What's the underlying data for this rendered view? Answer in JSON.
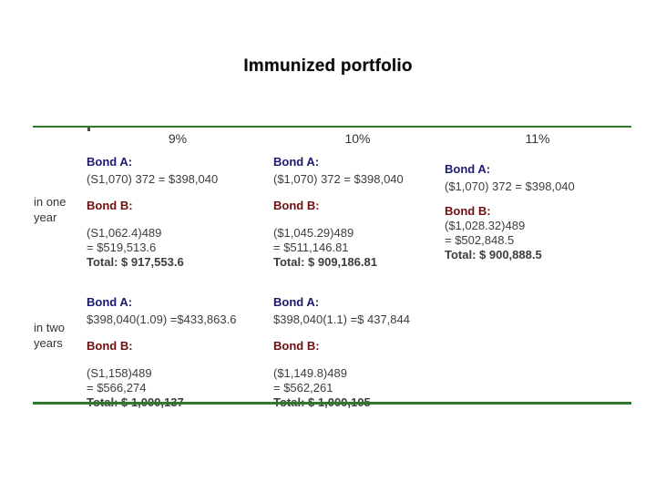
{
  "title": "Immunized portfolio",
  "table": {
    "columns": [
      {
        "header": "9%"
      },
      {
        "header": "10%"
      },
      {
        "header": "11%"
      }
    ],
    "rows": [
      {
        "label": "in one year"
      },
      {
        "label": "in two years"
      }
    ],
    "cells": {
      "r1c1": {
        "bond_a_label": "Bond A:",
        "bond_a_calc": "(S1,070) 372 = $398,040",
        "bond_b_label": "Bond B:",
        "bond_b_line1": "(S1,062.4)489",
        "bond_b_line2": "= $519,513.6",
        "total": "Total: $ 917,553.6"
      },
      "r1c2": {
        "bond_a_label": "Bond A:",
        "bond_a_calc": "($1,070) 372 = $398,040",
        "bond_b_label": "Bond B:",
        "bond_b_line1": "($1,045.29)489",
        "bond_b_line2": "= $511,146.81",
        "total": "Total: $ 909,186.81"
      },
      "r1c3": {
        "bond_a_label": "Bond A:",
        "bond_a_calc": "($1,070) 372 = $398,040",
        "bond_b_label": "Bond B:",
        "bond_b_line1": "($1,028.32)489",
        "bond_b_line2": "= $502,848.5",
        "total": "Total: $ 900,888.5"
      },
      "r2c1": {
        "bond_a_label": "Bond A:",
        "bond_a_calc": "$398,040(1.09) =$433,863.6",
        "bond_b_label": "Bond B:",
        "bond_b_line1": "(S1,158)489",
        "bond_b_line2": "= $566,274",
        "total": "Total: $ 1,000,137"
      },
      "r2c2": {
        "bond_a_label": "Bond A:",
        "bond_a_calc": "$398,040(1.1) =$ 437,844",
        "bond_b_label": "Bond B:",
        "bond_b_line1": "($1,149.8)489",
        "bond_b_line2": "= $562,261",
        "total": "Total: $ 1,000,105"
      }
    }
  },
  "colors": {
    "accent_green": "#2d7a2d",
    "bond_a_navy": "#1a1a73",
    "bond_b_maroon": "#6e0e0e",
    "body_text": "#3d3d3d",
    "title_text": "#0a0a0a"
  }
}
